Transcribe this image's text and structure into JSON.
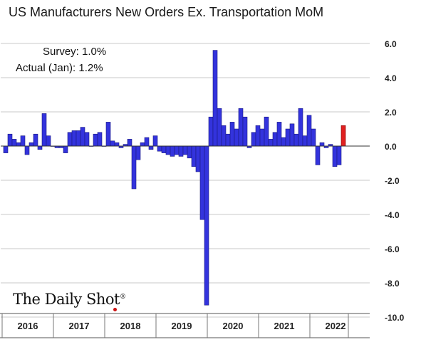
{
  "title": "US Manufacturers New Orders Ex. Transportation MoM",
  "annotations": {
    "survey": "Survey:  1.0%",
    "actual": "Actual (Jan):  1.2%"
  },
  "logo": {
    "text": "The Daily Shot",
    "mark": "®"
  },
  "colors": {
    "bar": "#3333dd",
    "bar_border": "#1a1a80",
    "highlight": "#e02020",
    "highlight_border": "#800000",
    "grid": "#c8c8c8",
    "logo_dot": "#cc1111"
  },
  "chart_data": {
    "type": "bar",
    "title": "US Manufacturers New Orders Ex. Transportation MoM",
    "xlabel": "",
    "ylabel": "",
    "ylim": [
      -10,
      6
    ],
    "y_ticks": [
      "6.0",
      "4.0",
      "2.0",
      "0.0",
      "-2.0",
      "-4.0",
      "-6.0",
      "-8.0",
      "-10.0"
    ],
    "year_labels": [
      "2016",
      "2017",
      "2018",
      "2019",
      "2020",
      "2021",
      "2022"
    ],
    "grid": true,
    "start_month": "2016-01",
    "values": [
      -0.4,
      0.7,
      0.4,
      0.2,
      0.6,
      -0.5,
      0.2,
      0.7,
      -0.2,
      1.9,
      0.6,
      0.0,
      -0.1,
      -0.1,
      -0.4,
      0.8,
      0.9,
      0.9,
      1.1,
      0.8,
      0.0,
      0.7,
      0.8,
      0.0,
      1.4,
      0.3,
      0.2,
      -0.1,
      0.1,
      0.4,
      -2.5,
      -0.8,
      0.2,
      0.5,
      -0.2,
      0.6,
      -0.3,
      -0.4,
      -0.5,
      -0.6,
      -0.5,
      -0.6,
      -0.5,
      -0.7,
      -1.2,
      -1.5,
      -4.3,
      -9.3,
      1.7,
      5.6,
      2.2,
      1.2,
      0.7,
      1.4,
      1.0,
      2.2,
      1.7,
      -0.1,
      0.8,
      1.2,
      1.0,
      1.7,
      0.4,
      0.8,
      1.4,
      0.5,
      1.0,
      1.3,
      0.7,
      2.2,
      0.6,
      1.8,
      1.0,
      -1.1,
      0.2,
      -0.1,
      0.1,
      -1.2,
      -1.1,
      1.2
    ],
    "highlight_last": true
  }
}
